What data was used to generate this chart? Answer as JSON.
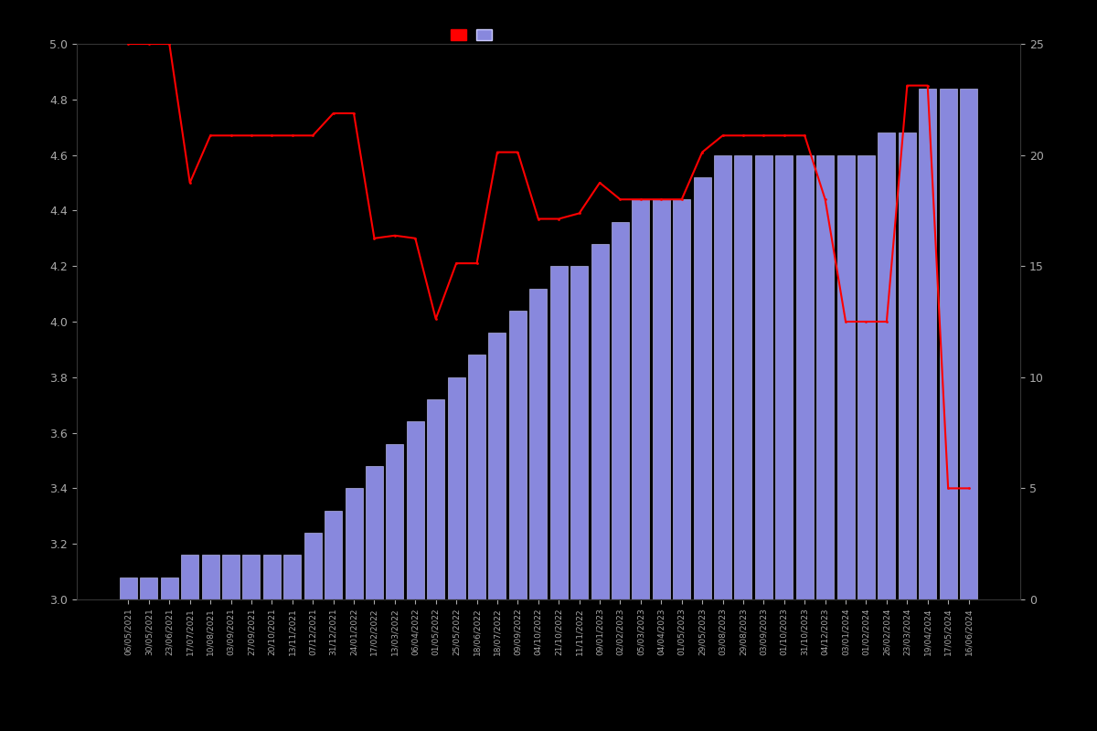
{
  "background_color": "#000000",
  "bar_color": "#8888dd",
  "bar_edge_color": "#ccccff",
  "line_color": "#ff0000",
  "left_ylim": [
    3.0,
    5.0
  ],
  "right_ylim": [
    0,
    25
  ],
  "left_yticks": [
    3.0,
    3.2,
    3.4,
    3.6,
    3.8,
    4.0,
    4.2,
    4.4,
    4.6,
    4.8,
    5.0
  ],
  "right_yticks": [
    0,
    5,
    10,
    15,
    20,
    25
  ],
  "label_color": "#aaaaaa",
  "dates": [
    "06/05/2021",
    "30/05/2021",
    "23/06/2021",
    "17/07/2021",
    "10/08/2021",
    "03/09/2021",
    "27/09/2021",
    "20/10/2021",
    "13/11/2021",
    "07/12/2021",
    "31/12/2021",
    "24/01/2022",
    "17/02/2022",
    "13/03/2022",
    "06/04/2022",
    "01/05/2022",
    "25/05/2022",
    "18/06/2022",
    "18/07/2022",
    "09/09/2022",
    "04/10/2022",
    "21/10/2022",
    "11/11/2022",
    "09/01/2023",
    "02/02/2023",
    "05/03/2023",
    "04/04/2023",
    "01/05/2023",
    "29/05/2023",
    "03/08/2023",
    "29/08/2023",
    "03/09/2023",
    "01/10/2023",
    "31/10/2023",
    "04/12/2023",
    "03/01/2024",
    "01/02/2024",
    "26/02/2024",
    "23/03/2024",
    "19/04/2024",
    "17/05/2024",
    "16/06/2024"
  ],
  "bar_values": [
    1,
    1,
    1,
    2,
    2,
    2,
    2,
    2,
    2,
    3,
    4,
    5,
    6,
    7,
    8,
    9,
    10,
    11,
    12,
    13,
    14,
    15,
    15,
    16,
    17,
    18,
    18,
    18,
    19,
    20,
    20,
    20,
    20,
    20,
    20,
    20,
    20,
    21,
    21,
    23,
    23,
    23
  ],
  "line_values": [
    5.0,
    5.0,
    5.0,
    4.5,
    4.67,
    4.67,
    4.67,
    4.67,
    4.67,
    4.67,
    4.75,
    4.75,
    4.3,
    4.31,
    4.3,
    4.01,
    4.21,
    4.21,
    4.61,
    4.61,
    4.37,
    4.37,
    4.39,
    4.5,
    4.44,
    4.44,
    4.44,
    4.44,
    4.61,
    4.67,
    4.67,
    4.67,
    4.67,
    4.67,
    4.44,
    4.0,
    4.0,
    4.0,
    4.85,
    4.85,
    3.4,
    3.4
  ]
}
